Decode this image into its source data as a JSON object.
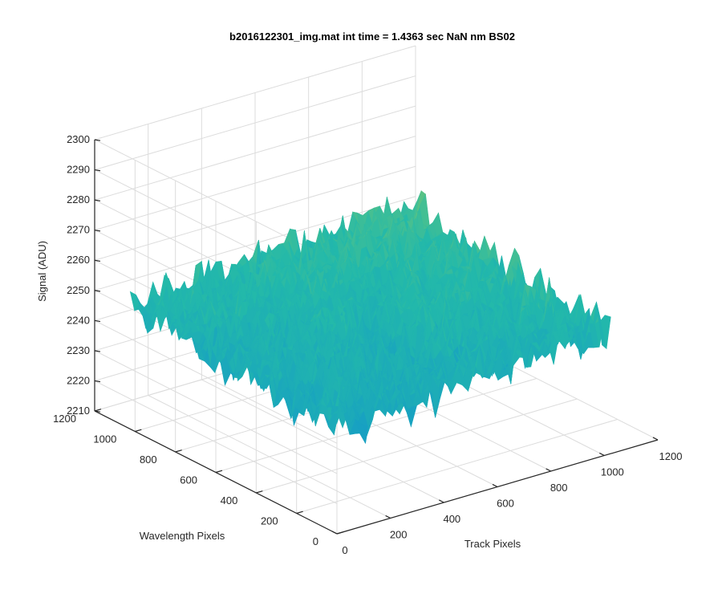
{
  "chart_data": {
    "type": "surface3d",
    "title": "b2016122301_img.mat int time = 1.4363 sec  NaN nm BS02",
    "xlabel": "Track Pixels",
    "ylabel": "Wavelength Pixels",
    "zlabel": "Signal (ADU)",
    "xlim": [
      0,
      1200
    ],
    "ylim": [
      0,
      1200
    ],
    "zlim": [
      2210,
      2300
    ],
    "xticks": [
      "0",
      "200",
      "400",
      "600",
      "800",
      "1000",
      "1200"
    ],
    "yticks": [
      "0",
      "200",
      "400",
      "600",
      "800",
      "1000",
      "1200"
    ],
    "zticks": [
      "2210",
      "2220",
      "2230",
      "2240",
      "2250",
      "2260",
      "2270",
      "2280",
      "2290",
      "2300"
    ],
    "data_extent": {
      "track_pixels": [
        0,
        1024
      ],
      "wavelength_pixels": [
        0,
        1024
      ]
    },
    "signal_range_approx": [
      2215,
      2285
    ],
    "signal_mean_approx": 2252,
    "colormap": "parula",
    "grid": true,
    "box": false,
    "colors": {
      "low": "#0072BD",
      "mid": "#26BCA8",
      "high": "#EDB120"
    }
  }
}
